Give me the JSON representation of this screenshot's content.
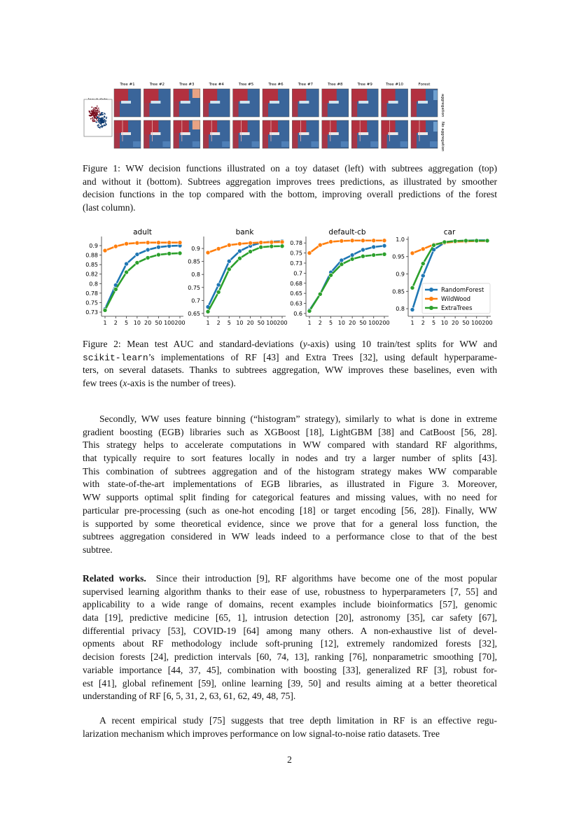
{
  "figure1": {
    "input_label": "Input data",
    "panel_titles": [
      "Tree #1",
      "Tree #2",
      "Tree #3",
      "Tree #4",
      "Tree #5",
      "Tree #6",
      "Tree #7",
      "Tree #8",
      "Tree #9",
      "Tree #10",
      "Forest"
    ],
    "row_labels": [
      "aggregation",
      "No aggregation"
    ],
    "colors": {
      "red": "#b2313f",
      "blue": "#3a659a",
      "light": "#e9a384",
      "pale": "#cfe3ee"
    },
    "caption": [
      "Figure 1: WW decision functions illustrated on a toy dataset (left) with subtrees aggregation (top)",
      "and without it (bottom). Subtrees aggregation improves trees predictions, as illustrated by smoother",
      "decision functions in the top compared with the bottom, improving overall predictions of the forest",
      "(last column)."
    ]
  },
  "chart_data": [
    {
      "type": "line",
      "title": "adult",
      "categories": [
        "1",
        "2",
        "5",
        "10",
        "20",
        "50",
        "100",
        "200"
      ],
      "yticks": [
        0.725,
        0.75,
        0.775,
        0.8,
        0.825,
        0.85,
        0.875,
        0.9
      ],
      "ytick_labels": [
        "0.73",
        "0.75",
        "0.78",
        "0.8",
        "0.82",
        "0.85",
        "0.88",
        "0.9"
      ],
      "ylim": [
        0.714,
        0.924
      ],
      "series": [
        {
          "name": "RandomForest",
          "color": "#1f77b4",
          "values": [
            0.733,
            0.796,
            0.852,
            0.877,
            0.889,
            0.896,
            0.899,
            0.9
          ]
        },
        {
          "name": "WildWood",
          "color": "#ff7f0e",
          "values": [
            0.887,
            0.898,
            0.905,
            0.907,
            0.908,
            0.908,
            0.908,
            0.908
          ]
        },
        {
          "name": "ExtraTrees",
          "color": "#2ca02c",
          "values": [
            0.73,
            0.785,
            0.83,
            0.855,
            0.868,
            0.876,
            0.879,
            0.88
          ]
        }
      ]
    },
    {
      "type": "line",
      "title": "bank",
      "categories": [
        "1",
        "2",
        "5",
        "10",
        "20",
        "50",
        "100",
        "200"
      ],
      "yticks": [
        0.65,
        0.7,
        0.75,
        0.8,
        0.85,
        0.9
      ],
      "ytick_labels": [
        "0.65",
        "0.7",
        "0.75",
        "0.8",
        "0.85",
        "0.9"
      ],
      "ylim": [
        0.639,
        0.946
      ],
      "series": [
        {
          "name": "RandomForest",
          "color": "#1f77b4",
          "values": [
            0.675,
            0.76,
            0.851,
            0.89,
            0.91,
            0.922,
            0.926,
            0.928
          ]
        },
        {
          "name": "WildWood",
          "color": "#ff7f0e",
          "values": [
            0.884,
            0.899,
            0.913,
            0.918,
            0.921,
            0.923,
            0.924,
            0.925
          ]
        },
        {
          "name": "ExtraTrees",
          "color": "#2ca02c",
          "values": [
            0.657,
            0.732,
            0.82,
            0.862,
            0.888,
            0.905,
            0.908,
            0.909
          ]
        }
      ]
    },
    {
      "type": "line",
      "title": "default-cb",
      "categories": [
        "1",
        "2",
        "5",
        "10",
        "20",
        "50",
        "100",
        "200"
      ],
      "yticks": [
        0.6,
        0.625,
        0.65,
        0.675,
        0.7,
        0.725,
        0.75,
        0.775
      ],
      "ytick_labels": [
        "0.6",
        "0.63",
        "0.65",
        "0.68",
        "0.7",
        "0.73",
        "0.75",
        "0.78"
      ],
      "ylim": [
        0.593,
        0.791
      ],
      "series": [
        {
          "name": "RandomForest",
          "color": "#1f77b4",
          "values": [
            0.608,
            0.648,
            0.702,
            0.732,
            0.745,
            0.758,
            0.765,
            0.768
          ]
        },
        {
          "name": "WildWood",
          "color": "#ff7f0e",
          "values": [
            0.75,
            0.77,
            0.778,
            0.78,
            0.781,
            0.781,
            0.781,
            0.781
          ]
        },
        {
          "name": "ExtraTrees",
          "color": "#2ca02c",
          "values": [
            0.606,
            0.648,
            0.695,
            0.722,
            0.735,
            0.742,
            0.745,
            0.747
          ]
        }
      ]
    },
    {
      "type": "line",
      "title": "car",
      "categories": [
        "1",
        "2",
        "5",
        "10",
        "20",
        "50",
        "100",
        "200"
      ],
      "yticks": [
        0.8,
        0.85,
        0.9,
        0.95,
        1.0
      ],
      "ytick_labels": [
        "0.8",
        "0.85",
        "0.9",
        "0.95",
        "1.0"
      ],
      "ylim": [
        0.778,
        1.008
      ],
      "legend": "bottom-right",
      "series": [
        {
          "name": "RandomForest",
          "color": "#1f77b4",
          "values": [
            0.797,
            0.895,
            0.97,
            0.99,
            0.995,
            0.996,
            0.997,
            0.997
          ]
        },
        {
          "name": "WildWood",
          "color": "#ff7f0e",
          "values": [
            0.96,
            0.972,
            0.985,
            0.99,
            0.993,
            0.994,
            0.995,
            0.995
          ]
        },
        {
          "name": "ExtraTrees",
          "color": "#2ca02c",
          "values": [
            0.86,
            0.93,
            0.983,
            0.992,
            0.995,
            0.996,
            0.996,
            0.996
          ]
        }
      ]
    }
  ],
  "figure2": {
    "caption": [
      [
        {
          "t": "Figure 2: Mean test AUC and standard-deviations ("
        },
        {
          "t": "y",
          "s": "it"
        },
        {
          "t": "-axis) using 10 train/test splits for WW and"
        }
      ],
      [
        {
          "t": "scikit-learn",
          "s": "mono"
        },
        {
          "t": "’s implementations of RF [43] and Extra Trees [32], using default hyperparame-"
        }
      ],
      "ters, on several datasets. Thanks to subtrees aggregation, WW improves these baselines, even with",
      [
        {
          "t": "few trees ("
        },
        {
          "t": "x",
          "s": "it"
        },
        {
          "t": "-axis is the number of trees)."
        }
      ]
    ]
  },
  "paragraph1": [
    "Secondly, WW uses feature binning (“histogram” strategy), similarly to what is done in extreme",
    "gradient boosting (EGB) libraries such as XGBoost [18], LightGBM [38] and CatBoost [56, 28].",
    "This strategy helps to accelerate computations in WW compared with standard RF algorithms,",
    "that typically require to sort features locally in nodes and try a larger number of splits [43].",
    "This combination of subtrees aggregation and of the histogram strategy makes WW comparable",
    "with state-of-the-art implementations of EGB libraries, as illustrated in Figure 3. Moreover,",
    "WW supports optimal split finding for categorical features and missing values, with no need for",
    "particular pre-processing (such as one-hot encoding [18] or target encoding [56, 28]). Finally, WW",
    "is supported by some theoretical evidence, since we prove that for a general loss function, the",
    "subtrees aggregation considered in WW leads indeed to a performance close to that of the best",
    "subtree."
  ],
  "paragraph2": [
    [
      {
        "t": "Related works.",
        "s": "b"
      },
      {
        "t": " ",
        "s": "sp"
      },
      {
        "t": "Since their introduction [9], RF algorithms have become one of the most popular"
      }
    ],
    "supervised learning algorithm thanks to their ease of use, robustness to hyperparameters [7, 55] and",
    "applicability to a wide range of domains, recent examples include bioinformatics [57], genomic",
    "data [19], predictive medicine [65, 1], intrusion detection [20], astronomy [35], car safety [67],",
    "differential privacy [53], COVID-19 [64] among many others. A non-exhaustive list of devel-",
    "opments about RF methodology include soft-pruning [12], extremely randomized forests [32],",
    "decision forests [24], prediction intervals [60, 74, 13], ranking [76], nonparametric smoothing [70],",
    "variable importance [44, 37, 45], combination with boosting [33], generalized RF [3], robust for-",
    "est [41], global refinement [59], online learning [39, 50] and results aiming at a better theoretical",
    "understanding of RF [6, 5, 31, 2, 63, 61, 62, 49, 48, 75]."
  ],
  "paragraph3": [
    "A recent empirical study [75] suggests that tree depth limitation in RF is an effective regu-",
    "larization mechanism which improves performance on low signal-to-noise ratio datasets. Tree"
  ],
  "page_number": "2"
}
